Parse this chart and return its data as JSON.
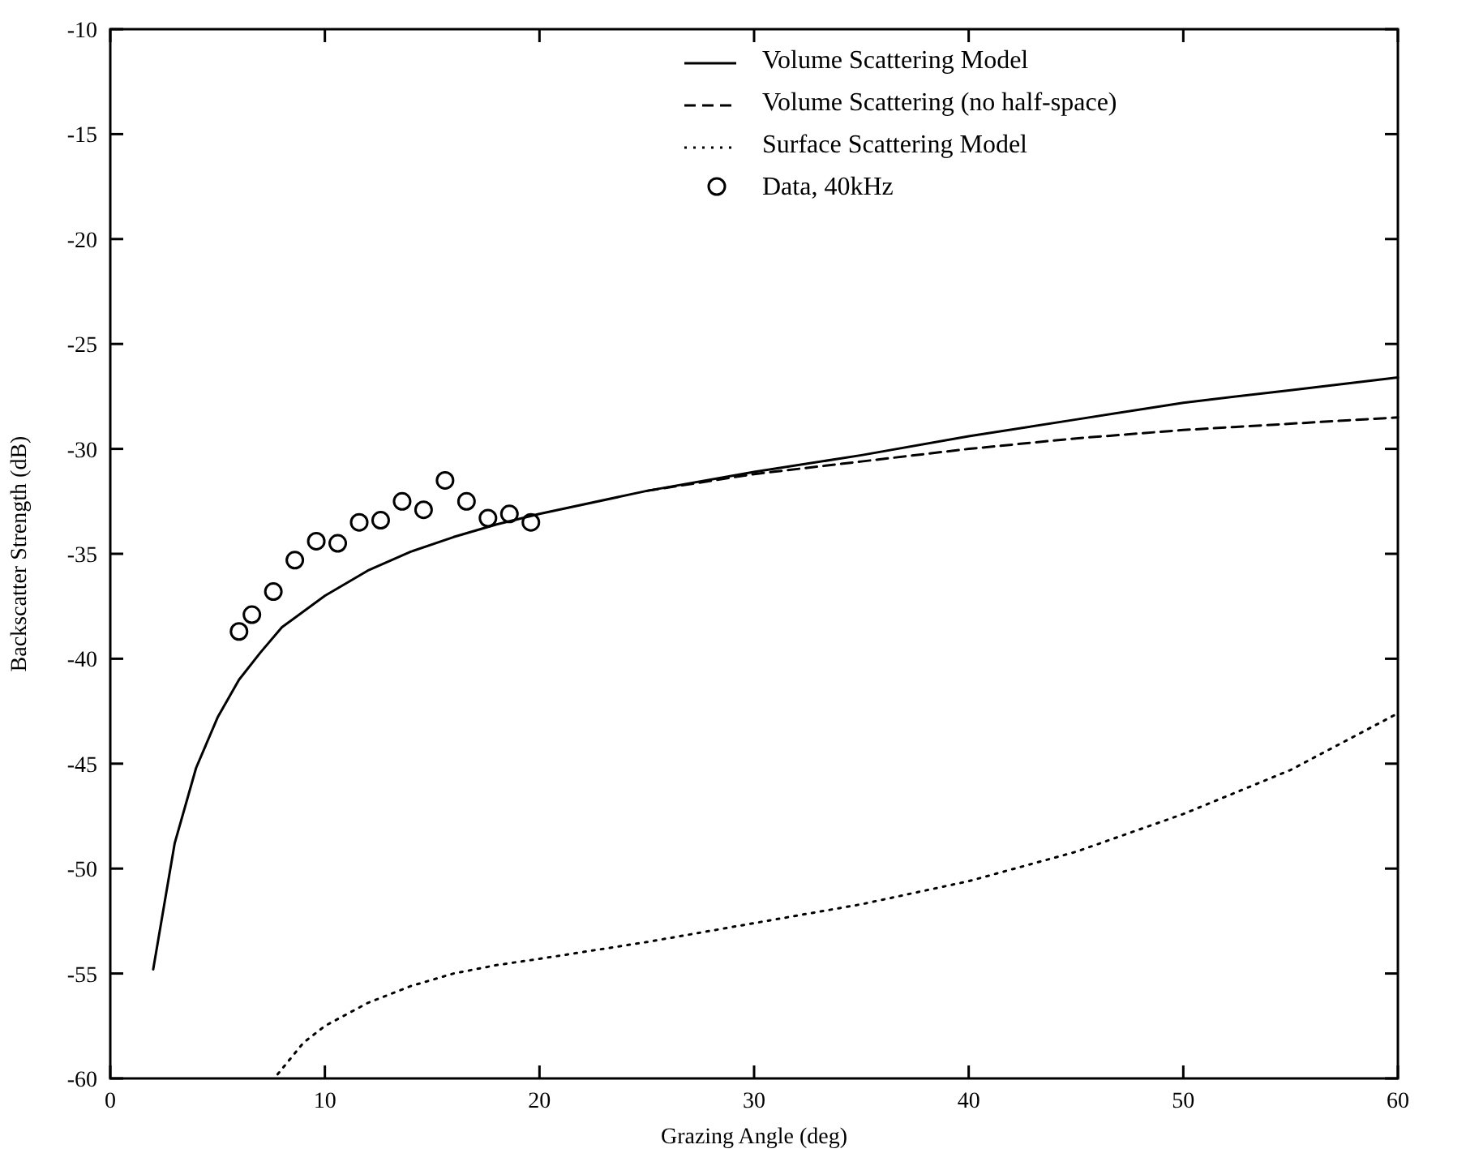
{
  "chart_data": {
    "type": "line",
    "xlabel": "Grazing Angle (deg)",
    "ylabel": "Backscatter Strength (dB)",
    "xlim": [
      0,
      60
    ],
    "xticks": [
      0,
      10,
      20,
      30,
      40,
      50,
      60
    ],
    "ylim": [
      -60,
      -10
    ],
    "yticks": [
      -60,
      -55,
      -50,
      -45,
      -40,
      -35,
      -30,
      -25,
      -20,
      -15,
      -10
    ],
    "legend": "top right",
    "grid": false,
    "series": [
      {
        "name": "Volume Scattering Model",
        "color": "#000000",
        "line_style": "solid",
        "x": [
          2,
          3,
          4,
          5,
          6,
          7,
          8,
          10,
          12,
          14,
          16,
          18,
          20,
          25,
          30,
          35,
          40,
          45,
          50,
          55,
          60
        ],
        "values": [
          -54.8,
          -48.8,
          -45.2,
          -42.8,
          -41,
          -39.7,
          -38.5,
          -37,
          -35.8,
          -34.9,
          -34.2,
          -33.6,
          -33.1,
          -32,
          -31.1,
          -30.3,
          -29.4,
          -28.6,
          -27.8,
          -27.2,
          -26.6
        ]
      },
      {
        "name": "Volume Scattering (no half-space)",
        "color": "#000000",
        "line_style": "dashed",
        "x": [
          25,
          30,
          35,
          40,
          45,
          50,
          55,
          60
        ],
        "values": [
          -32,
          -31.2,
          -30.6,
          -30.0,
          -29.5,
          -29.1,
          -28.8,
          -28.5
        ]
      },
      {
        "name": "Surface Scattering Model",
        "color": "#000000",
        "line_style": "dotted",
        "x": [
          7.8,
          9,
          10,
          12,
          14,
          16,
          18,
          20,
          25,
          30,
          35,
          40,
          45,
          50,
          55,
          60
        ],
        "values": [
          -59.8,
          -58.3,
          -57.5,
          -56.4,
          -55.6,
          -55.0,
          -54.6,
          -54.3,
          -53.5,
          -52.6,
          -51.7,
          -50.6,
          -49.2,
          -47.4,
          -45.3,
          -42.6
        ]
      },
      {
        "name": "Data, 40kHz",
        "type": "scatter",
        "color": "#000000",
        "marker": "circle",
        "x": [
          6,
          6.6,
          7.6,
          8.6,
          9.6,
          10.6,
          11.6,
          12.6,
          13.6,
          14.6,
          15.6,
          16.6,
          17.6,
          18.6,
          19.6
        ],
        "values": [
          -38.7,
          -37.9,
          -36.8,
          -35.3,
          -34.4,
          -34.5,
          -33.5,
          -33.4,
          -32.5,
          -32.9,
          -31.5,
          -32.5,
          -33.3,
          -33.1,
          -33.5
        ]
      }
    ]
  }
}
